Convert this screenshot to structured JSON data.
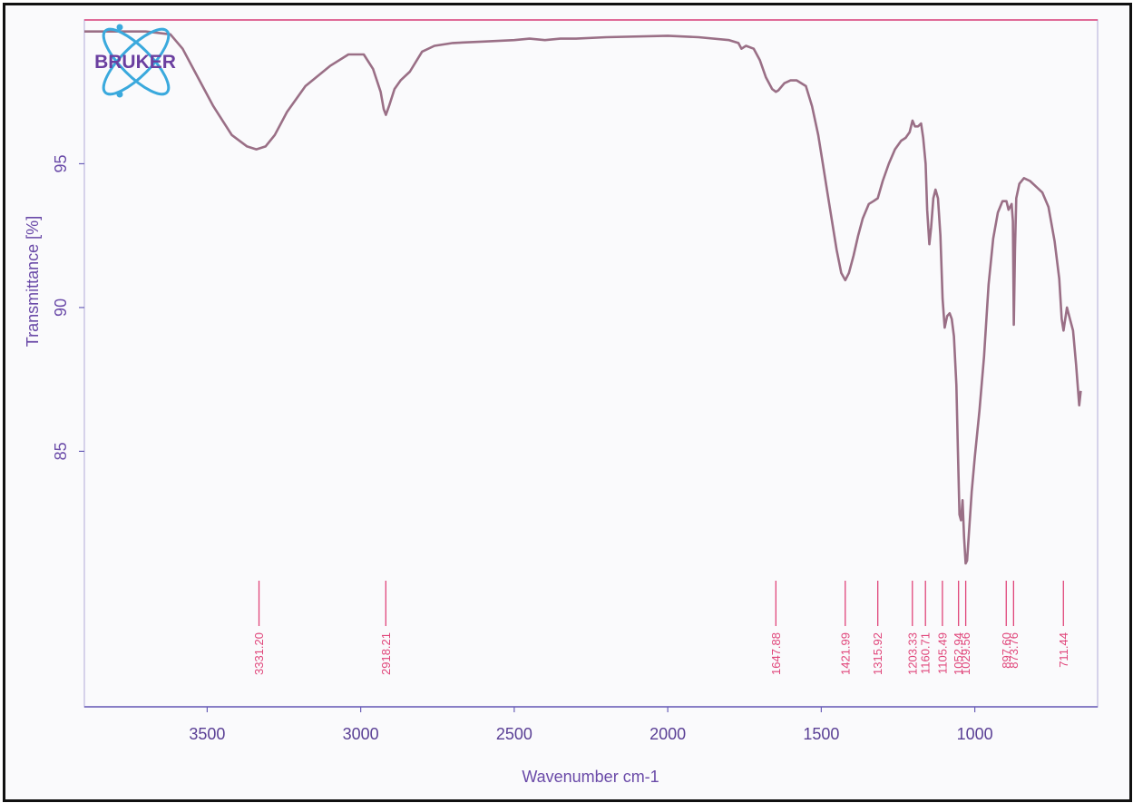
{
  "brand": {
    "logo_text": "BRUKER",
    "logo_color": "#6b3fa0",
    "orbit_color": "#3aa9dd"
  },
  "colors": {
    "spectrum": "#9a6f86",
    "peak_marker": "#e0457a",
    "axis": "#6a5fb8",
    "frame": "#111111"
  },
  "chart_data": {
    "type": "line",
    "xlabel": "Wavenumber cm-1",
    "ylabel": "Transmittance [%]",
    "x_reversed": true,
    "xlim": [
      3900,
      600
    ],
    "ylim": [
      80.5,
      100
    ],
    "x_ticks": [
      3500,
      3000,
      2500,
      2000,
      1500,
      1000
    ],
    "y_ticks": [
      85,
      90,
      95
    ],
    "grid": false,
    "series": [
      {
        "x": [
          3900,
          3700,
          3620,
          3580,
          3530,
          3480,
          3420,
          3370,
          3340,
          3310,
          3280,
          3240,
          3180,
          3100,
          3040,
          2990,
          2960,
          2935,
          2925,
          2918,
          2908,
          2890,
          2870,
          2840,
          2800,
          2760,
          2700,
          2600,
          2500,
          2450,
          2400,
          2350,
          2300,
          2200,
          2000,
          1900,
          1800,
          1770,
          1760,
          1745,
          1720,
          1700,
          1680,
          1660,
          1648,
          1640,
          1620,
          1600,
          1580,
          1550,
          1530,
          1510,
          1495,
          1480,
          1465,
          1450,
          1435,
          1422,
          1410,
          1395,
          1380,
          1365,
          1345,
          1330,
          1316,
          1300,
          1280,
          1260,
          1240,
          1225,
          1212,
          1203,
          1195,
          1185,
          1175,
          1168,
          1160,
          1155,
          1148,
          1142,
          1135,
          1128,
          1120,
          1112,
          1105,
          1098,
          1090,
          1082,
          1075,
          1068,
          1060,
          1055,
          1050,
          1045,
          1040,
          1035,
          1030,
          1025,
          1020,
          1010,
          1000,
          985,
          970,
          955,
          940,
          925,
          910,
          897,
          890,
          880,
          876,
          873,
          869,
          865,
          855,
          840,
          820,
          800,
          780,
          760,
          740,
          725,
          717,
          711,
          700,
          690,
          680,
          670,
          660,
          655
        ],
        "y": [
          99.6,
          99.6,
          99.5,
          99.0,
          98.0,
          97.0,
          96.0,
          95.6,
          95.5,
          95.6,
          96.0,
          96.8,
          97.7,
          98.4,
          98.8,
          98.8,
          98.3,
          97.5,
          96.9,
          96.7,
          97.0,
          97.6,
          97.9,
          98.2,
          98.9,
          99.1,
          99.2,
          99.25,
          99.3,
          99.35,
          99.3,
          99.35,
          99.35,
          99.4,
          99.45,
          99.4,
          99.3,
          99.2,
          99.0,
          99.1,
          99.0,
          98.6,
          98.0,
          97.6,
          97.5,
          97.55,
          97.8,
          97.9,
          97.9,
          97.7,
          97.0,
          96.0,
          95.0,
          94.0,
          93.0,
          92.0,
          91.2,
          90.95,
          91.2,
          91.8,
          92.5,
          93.1,
          93.6,
          93.7,
          93.8,
          94.4,
          95.0,
          95.5,
          95.8,
          95.9,
          96.1,
          96.5,
          96.3,
          96.3,
          96.4,
          95.9,
          95.0,
          93.4,
          92.2,
          92.8,
          93.8,
          94.1,
          93.8,
          92.5,
          90.3,
          89.3,
          89.7,
          89.8,
          89.6,
          89.0,
          87.3,
          85.0,
          82.8,
          82.6,
          83.3,
          82.0,
          81.1,
          81.2,
          82.0,
          83.6,
          84.8,
          86.4,
          88.3,
          90.8,
          92.4,
          93.3,
          93.7,
          93.7,
          93.4,
          93.6,
          93.0,
          89.4,
          92.0,
          93.8,
          94.3,
          94.5,
          94.4,
          94.2,
          94.0,
          93.5,
          92.3,
          91.0,
          89.6,
          89.2,
          90.0,
          89.6,
          89.2,
          88.0,
          86.6,
          87.1
        ]
      }
    ],
    "peaks": [
      {
        "x": 3331.2,
        "label": "3331.20"
      },
      {
        "x": 2918.21,
        "label": "2918.21"
      },
      {
        "x": 1647.88,
        "label": "1647.88"
      },
      {
        "x": 1421.99,
        "label": "1421.99"
      },
      {
        "x": 1315.92,
        "label": "1315.92"
      },
      {
        "x": 1203.33,
        "label": "1203.33"
      },
      {
        "x": 1160.71,
        "label": "1160.71"
      },
      {
        "x": 1105.49,
        "label": "1105.49"
      },
      {
        "x": 1052.94,
        "label": "1052.94"
      },
      {
        "x": 1029.56,
        "label": "1029.56"
      },
      {
        "x": 897.6,
        "label": "897.60"
      },
      {
        "x": 873.76,
        "label": "873.76"
      },
      {
        "x": 711.44,
        "label": "711.44"
      }
    ]
  }
}
